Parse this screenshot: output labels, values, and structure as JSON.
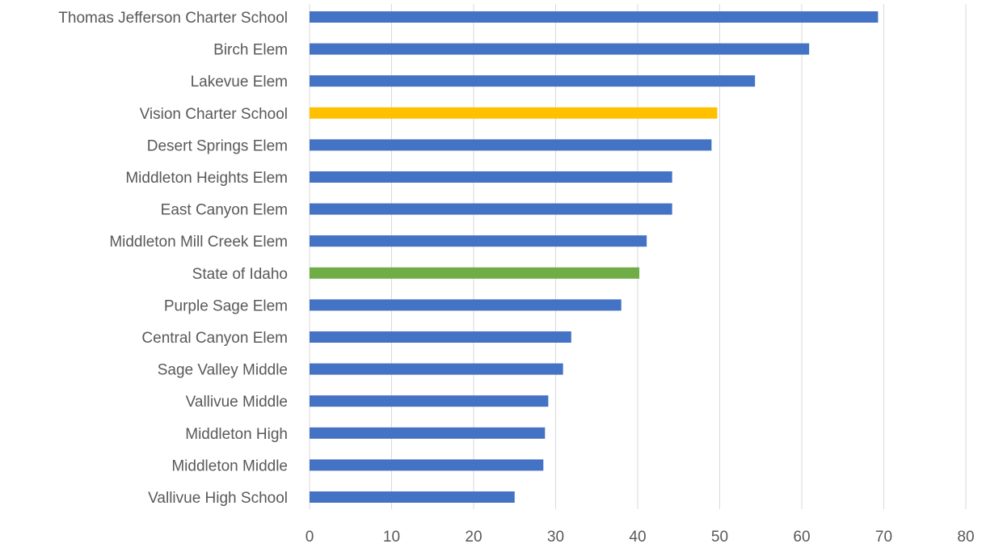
{
  "chart_data": {
    "type": "bar",
    "orientation": "horizontal",
    "categories": [
      "Thomas Jefferson Charter School",
      "Birch Elem",
      "Lakevue Elem",
      "Vision Charter School",
      "Desert Springs Elem",
      "Middleton Heights Elem",
      "East Canyon Elem",
      "Middleton Mill Creek Elem",
      "State of Idaho",
      "Purple Sage Elem",
      "Central Canyon Elem",
      "Sage Valley Middle",
      "Vallivue Middle",
      "Middleton High",
      "Middleton Middle",
      "Vallivue High School"
    ],
    "values": [
      69.3,
      60.9,
      54.3,
      49.7,
      49.0,
      44.2,
      44.2,
      41.1,
      40.2,
      38.0,
      31.9,
      30.9,
      29.1,
      28.7,
      28.5,
      25.0
    ],
    "bar_colors": [
      "#4472C4",
      "#4472C4",
      "#4472C4",
      "#FFC000",
      "#4472C4",
      "#4472C4",
      "#4472C4",
      "#4472C4",
      "#70AD47",
      "#4472C4",
      "#4472C4",
      "#4472C4",
      "#4472C4",
      "#4472C4",
      "#4472C4",
      "#4472C4"
    ],
    "xlim": [
      0,
      80
    ],
    "x_ticks": [
      "0",
      "10",
      "20",
      "30",
      "40",
      "50",
      "60",
      "70",
      "80"
    ],
    "grid": "vertical",
    "title": "",
    "xlabel": "",
    "ylabel": ""
  }
}
